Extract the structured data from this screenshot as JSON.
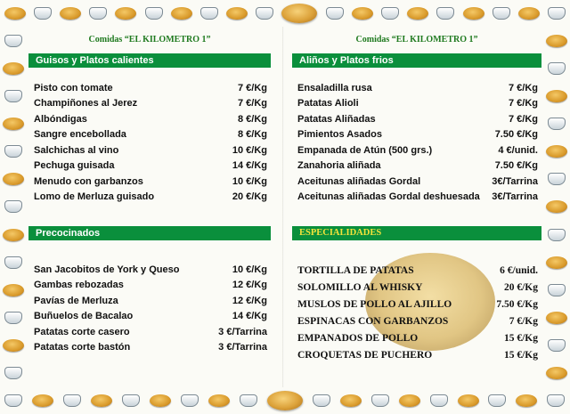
{
  "left": {
    "restaurant": "Comidas “EL KILOMETRO 1”",
    "sections": [
      {
        "title": "Guisos y Platos calientes",
        "items": [
          {
            "name": "Pisto con tomate",
            "price": "7 €/Kg"
          },
          {
            "name": "Champiñones al Jerez",
            "price": "7 €/Kg"
          },
          {
            "name": "Albóndigas",
            "price": "8 €/Kg"
          },
          {
            "name": "Sangre encebollada",
            "price": "8 €/Kg"
          },
          {
            "name": "Salchichas al vino",
            "price": "10 €/Kg"
          },
          {
            "name": "Pechuga guisada",
            "price": "14 €/Kg"
          },
          {
            "name": "Menudo con garbanzos",
            "price": "10 €/Kg"
          },
          {
            "name": "Lomo de Merluza guisado",
            "price": "20 €/Kg"
          }
        ]
      },
      {
        "title": "Precocinados",
        "items": [
          {
            "name": "San Jacobitos de York y Queso",
            "price": "10 €/Kg"
          },
          {
            "name": "Gambas rebozadas",
            "price": "12 €/Kg"
          },
          {
            "name": "Pavías de Merluza",
            "price": "12 €/Kg"
          },
          {
            "name": "Buñuelos de Bacalao",
            "price": "14 €/Kg"
          },
          {
            "name": "Patatas corte casero",
            "price": "3 €/Tarrina"
          },
          {
            "name": "Patatas corte bastón",
            "price": "3 €/Tarrina"
          }
        ]
      }
    ]
  },
  "right": {
    "restaurant": "Comidas “EL KILOMETRO 1”",
    "sections": [
      {
        "title": "Aliños y Platos frios",
        "items": [
          {
            "name": "Ensaladilla rusa",
            "price": "7 €/Kg"
          },
          {
            "name": "Patatas Alioli",
            "price": "7 €/Kg"
          },
          {
            "name": "Patatas Aliñadas",
            "price": "7 €/Kg"
          },
          {
            "name": "Pimientos Asados",
            "price": "7.50 €/Kg"
          },
          {
            "name": "Empanada de Atún (500 grs.)",
            "price": "4 €/unid."
          },
          {
            "name": "Zanahoria aliñada",
            "price": "7.50 €/Kg"
          },
          {
            "name": "Aceitunas aliñadas Gordal",
            "price": "3€/Tarrina"
          },
          {
            "name": "Aceitunas aliñadas Gordal deshuesada",
            "price": "3€/Tarrina"
          }
        ]
      },
      {
        "title": "ESPECIALIDADES",
        "items": [
          {
            "name": "TORTILLA DE PATATAS",
            "price": "6 €/unid."
          },
          {
            "name": "SOLOMILLO AL WHISKY",
            "price": "20 €/Kg"
          },
          {
            "name": "MUSLOS DE POLLO AL AJILLO",
            "price": "7.50 €/Kg"
          },
          {
            "name": "ESPINACAS CON GARBANZOS",
            "price": "7 €/Kg"
          },
          {
            "name": "EMPANADOS DE POLLO",
            "price": "15 €/Kg"
          },
          {
            "name": "CROQUETAS DE PUCHERO",
            "price": "15 €/Kg"
          }
        ]
      }
    ]
  },
  "decorations": {
    "border_icons": [
      "bread-roll-icon",
      "cooking-pot-icon"
    ],
    "accent_color": "#0a8f3c",
    "specials_title_color": "#f2e33a",
    "header_color": "#1f7a1f"
  }
}
